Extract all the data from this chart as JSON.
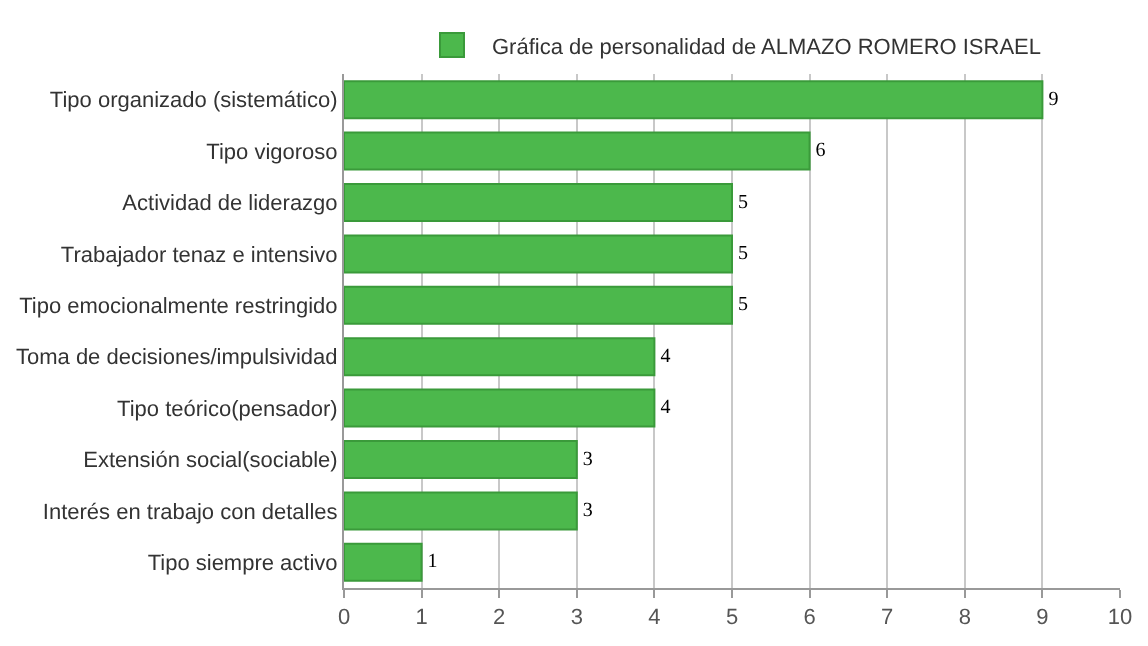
{
  "chart_data": {
    "type": "bar",
    "orientation": "horizontal",
    "categories": [
      "Tipo organizado (sistemático)",
      "Tipo vigoroso",
      "Actividad de liderazgo",
      "Trabajador tenaz e intensivo",
      "Tipo emocionalmente restringido",
      "Toma de decisiones/impulsividad",
      "Tipo teórico(pensador)",
      "Extensión social(sociable)",
      "Interés en trabajo con detalles",
      "Tipo siempre activo"
    ],
    "series": [
      {
        "name": "Gráfica de personalidad de ALMAZO ROMERO ISRAEL",
        "color": "#4cb84c",
        "values": [
          9,
          6,
          5,
          5,
          5,
          4,
          4,
          3,
          3,
          1
        ]
      }
    ],
    "xlim": [
      0,
      10
    ],
    "xticks": [
      0,
      1,
      2,
      3,
      4,
      5,
      6,
      7,
      8,
      9,
      10
    ],
    "grid": "x",
    "legend": "top",
    "data_labels": true
  }
}
